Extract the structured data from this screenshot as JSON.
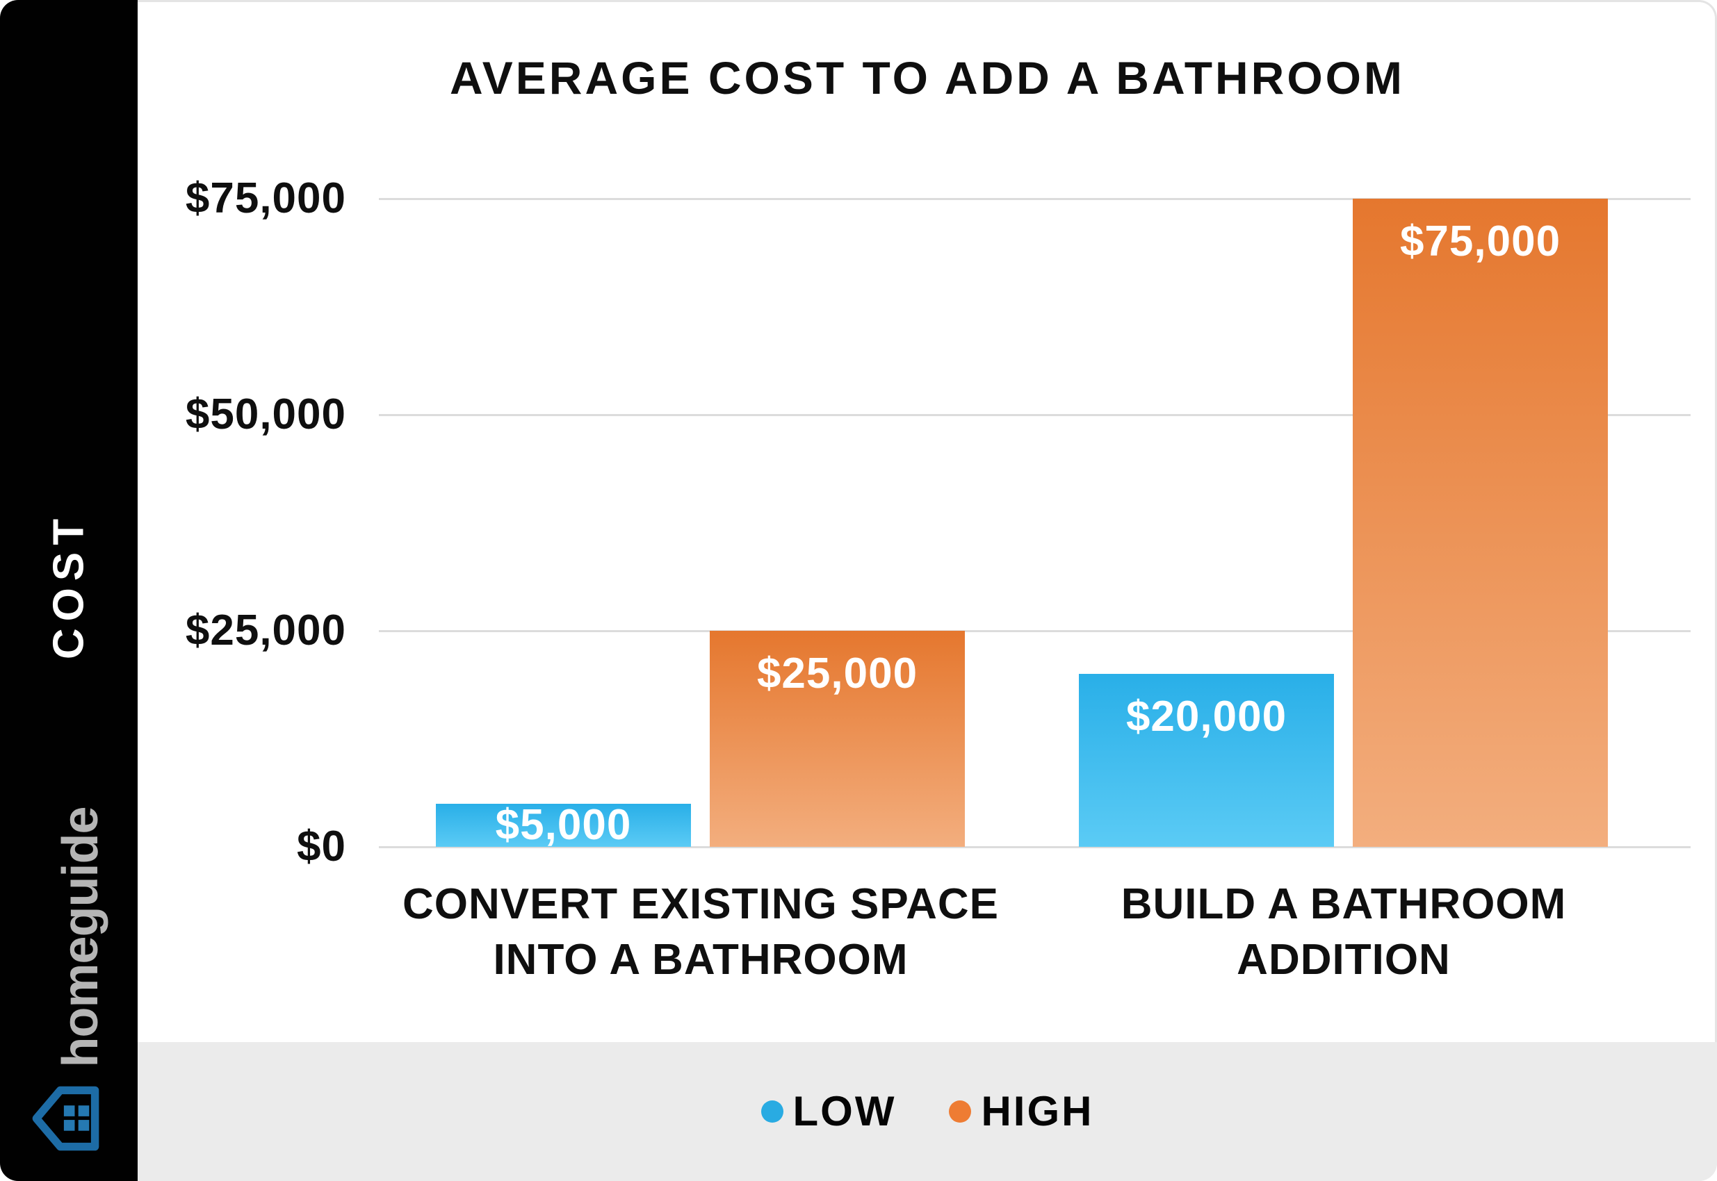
{
  "page": {
    "background": "#ffffff",
    "footer_background": "#ebebeb"
  },
  "sidebar": {
    "axis_label": "COST",
    "brand_name": "homeguide",
    "background": "#010101",
    "axis_label_color": "#ffffff",
    "brand_text_color": "#b5b5b5",
    "logo_color": "#1d6ca6",
    "logo_window_color": "#2579b2"
  },
  "chart_data": {
    "type": "bar",
    "title": "AVERAGE COST TO ADD A BATHROOM",
    "xlabel": "",
    "ylabel": "COST",
    "ylim": [
      0,
      75000
    ],
    "grid": true,
    "legend_position": "bottom",
    "yticks": [
      {
        "label": "$75,000",
        "value": 75000
      },
      {
        "label": "$50,000",
        "value": 50000
      },
      {
        "label": "$25,000",
        "value": 25000
      },
      {
        "label": "$0",
        "value": 0
      }
    ],
    "categories": [
      "CONVERT EXISTING SPACE INTO A BATHROOM",
      "BUILD A BATHROOM ADDITION"
    ],
    "category_lines": [
      [
        "CONVERT EXISTING SPACE",
        "INTO A BATHROOM"
      ],
      [
        "BUILD A BATHROOM",
        "ADDITION"
      ]
    ],
    "series": [
      {
        "name": "LOW",
        "color": "#29abe2",
        "gradient_top": "#29afe8",
        "gradient_bottom": "#5bcbf5",
        "values": [
          5000,
          20000
        ],
        "labels": [
          "$5,000",
          "$20,000"
        ]
      },
      {
        "name": "HIGH",
        "color": "#ee7c33",
        "gradient_top": "#e5772e",
        "gradient_bottom": "#f3ae7e",
        "values": [
          25000,
          75000
        ],
        "labels": [
          "$25,000",
          "$75,000"
        ]
      }
    ]
  },
  "legend": {
    "items": [
      {
        "label": "LOW",
        "color": "#29abe2"
      },
      {
        "label": "HIGH",
        "color": "#ee7c33"
      }
    ]
  }
}
